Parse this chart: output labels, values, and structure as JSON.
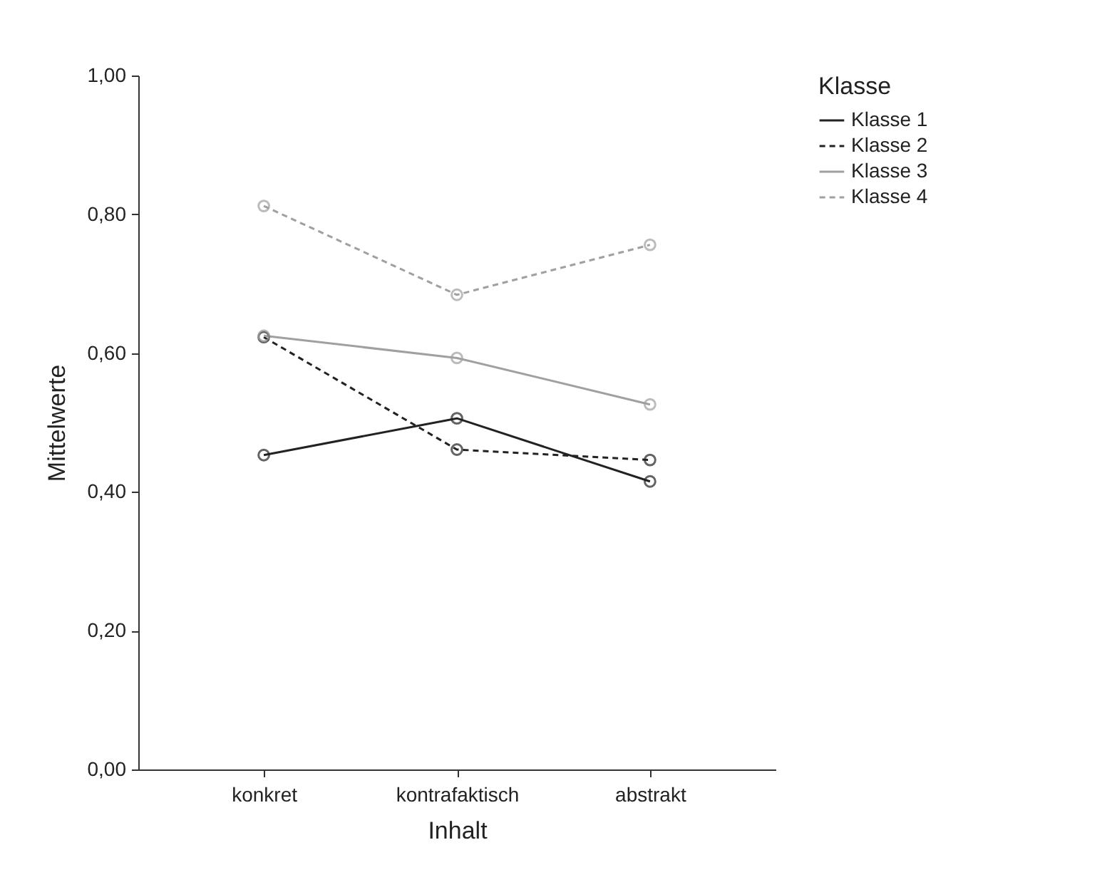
{
  "chart_data": {
    "type": "line",
    "xlabel": "Inhalt",
    "ylabel": "Mittelwerte",
    "legend_title": "Klasse",
    "categories": [
      "konkret",
      "kontrafaktisch",
      "abstrakt"
    ],
    "series": [
      {
        "name": "Klasse 1",
        "color": "#222222",
        "line_style": "solid",
        "values": [
          0.453,
          0.506,
          0.415
        ]
      },
      {
        "name": "Klasse 2",
        "color": "#222222",
        "line_style": "dashed",
        "values": [
          0.623,
          0.461,
          0.446
        ]
      },
      {
        "name": "Klasse 3",
        "color": "#a0a0a0",
        "line_style": "solid",
        "values": [
          0.625,
          0.593,
          0.526
        ]
      },
      {
        "name": "Klasse 4",
        "color": "#a0a0a0",
        "line_style": "dashed",
        "values": [
          0.812,
          0.684,
          0.756
        ]
      }
    ],
    "ylim": [
      0,
      1
    ],
    "yticks": [
      {
        "value": 0,
        "label": "0,00"
      },
      {
        "value": 0.2,
        "label": "0,20"
      },
      {
        "value": 0.4,
        "label": "0,40"
      },
      {
        "value": 0.6,
        "label": "0,60"
      },
      {
        "value": 0.8,
        "label": "0,80"
      },
      {
        "value": 1,
        "label": "1,00"
      }
    ],
    "grid": false,
    "legend": "right",
    "marker": "circle"
  }
}
